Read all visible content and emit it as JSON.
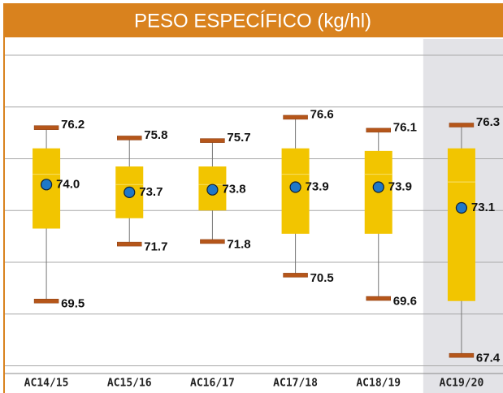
{
  "chart_data": {
    "type": "box",
    "title": "PESO ESPECÍFICO (kg/hl)",
    "categories": [
      "AC14/15",
      "AC15/16",
      "AC16/17",
      "AC17/18",
      "AC18/19",
      "AC19/20"
    ],
    "max": [
      76.2,
      75.8,
      75.7,
      76.6,
      76.1,
      76.3
    ],
    "max_labels": [
      "76.2",
      "75.8",
      "75.7",
      "76.6",
      "76.1",
      "76.3"
    ],
    "q3": [
      75.4,
      74.7,
      74.7,
      75.4,
      75.3,
      75.4
    ],
    "median": [
      74.4,
      74.0,
      74.0,
      74.4,
      74.4,
      74.1
    ],
    "q1": [
      72.3,
      72.7,
      73.0,
      72.1,
      72.1,
      69.5
    ],
    "min": [
      69.5,
      71.7,
      71.8,
      70.5,
      69.6,
      67.4
    ],
    "min_labels": [
      "69.5",
      "71.7",
      "71.8",
      "70.5",
      "69.6",
      "67.4"
    ],
    "mean": [
      74.0,
      73.7,
      73.8,
      73.9,
      73.9,
      73.1
    ],
    "mean_labels": [
      "74.0",
      "73.7",
      "73.8",
      "73.9",
      "73.9",
      "73.1"
    ],
    "ylim": [
      66.7,
      79.5
    ],
    "yticks": [
      67,
      69,
      71,
      73,
      75,
      77,
      79
    ],
    "grid": true,
    "highlight_index": 5,
    "colors": {
      "box": "#f2c500",
      "cap": "#b5561a",
      "mean": "#1f78c8",
      "title_bar": "#d9821e",
      "highlight": "#e3e3e7"
    }
  }
}
